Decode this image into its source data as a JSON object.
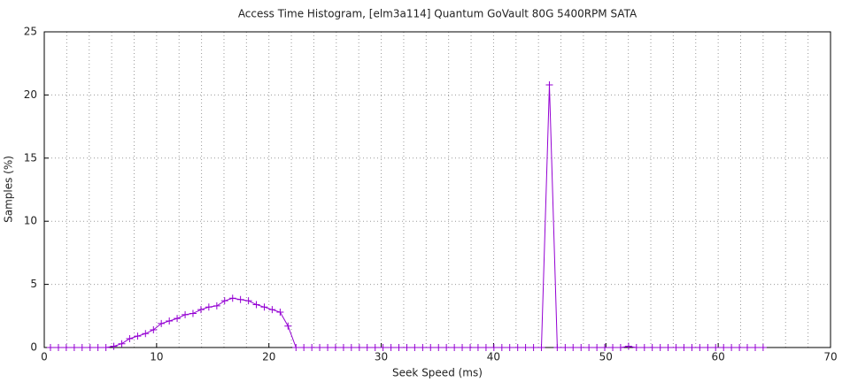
{
  "chart_data": {
    "type": "line",
    "title": "Access Time Histogram, [elm3a114] Quantum GoVault 80G 5400RPM SATA",
    "x_label": "Seek Speed (ms)",
    "y_label": "Samples (%)",
    "xlim": [
      0,
      70
    ],
    "ylim": [
      0,
      25
    ],
    "xticks": [
      0,
      10,
      20,
      30,
      40,
      50,
      60,
      70
    ],
    "yticks": [
      0,
      5,
      10,
      15,
      20,
      25
    ],
    "x_minor_grid": [
      2,
      4,
      6,
      8,
      12,
      14,
      16,
      18,
      22,
      24,
      26,
      28,
      32,
      34,
      36,
      38,
      42,
      44,
      46,
      48,
      52,
      54,
      56,
      58,
      62,
      64,
      66,
      68
    ],
    "grid": true,
    "series": [
      {
        "color": "#9400d3",
        "x": [
          0.55,
          1.26,
          1.96,
          2.67,
          3.37,
          4.08,
          4.78,
          5.49,
          6.19,
          6.9,
          7.6,
          8.31,
          9.01,
          9.72,
          10.42,
          11.13,
          11.83,
          12.54,
          13.24,
          13.95,
          14.65,
          15.36,
          16.06,
          16.77,
          17.47,
          18.18,
          18.88,
          19.59,
          20.29,
          21.0,
          21.7,
          22.41,
          23.11,
          23.82,
          24.52,
          25.23,
          25.93,
          26.64,
          27.34,
          28.05,
          28.75,
          29.46,
          30.16,
          30.87,
          31.57,
          32.28,
          32.98,
          33.69,
          34.39,
          35.1,
          35.8,
          36.51,
          37.21,
          37.92,
          38.62,
          39.33,
          40.03,
          40.74,
          41.44,
          42.15,
          42.85,
          43.56,
          44.26,
          44.97,
          45.67,
          46.38,
          47.08,
          47.79,
          48.49,
          49.2,
          49.9,
          50.61,
          51.31,
          52.02,
          52.72,
          53.43,
          54.13,
          54.84,
          55.54,
          56.25,
          56.95,
          57.66,
          58.36,
          59.07,
          59.77,
          60.48,
          61.18,
          61.89,
          62.59,
          63.3,
          64.0
        ],
        "values": [
          0,
          0,
          0,
          0,
          0,
          0,
          0,
          0,
          0.1,
          0.3,
          0.7,
          0.9,
          1.1,
          1.4,
          1.9,
          2.1,
          2.3,
          2.6,
          2.7,
          3.0,
          3.2,
          3.3,
          3.7,
          3.9,
          3.8,
          3.7,
          3.4,
          3.2,
          3.0,
          2.8,
          1.7,
          0,
          0,
          0,
          0,
          0,
          0,
          0,
          0,
          0,
          0,
          0,
          0,
          0,
          0,
          0,
          0,
          0,
          0,
          0,
          0,
          0,
          0,
          0,
          0,
          0,
          0,
          0,
          0,
          0,
          0,
          0,
          0,
          20.8,
          0,
          0,
          0,
          0,
          0,
          0,
          0,
          0,
          0,
          0.1,
          0,
          0,
          0,
          0,
          0,
          0,
          0,
          0,
          0,
          0,
          0,
          0,
          0,
          0,
          0,
          0,
          0
        ]
      }
    ]
  }
}
